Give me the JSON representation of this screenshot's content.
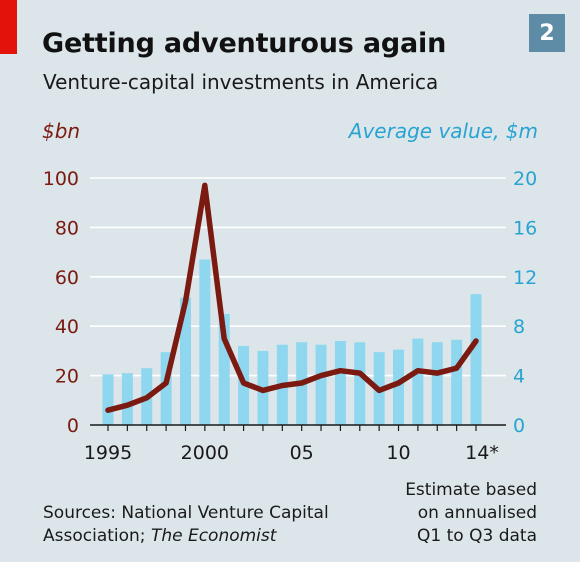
{
  "header": {
    "title": "Getting adventurous again",
    "subtitle": "Venture-capital investments in America",
    "badge": "2"
  },
  "footer": {
    "source_line1": "Sources: National Venture Capital",
    "source_line2_prefix": "Association; ",
    "source_line2_italic": "The Economist",
    "note_lines": [
      "Estimate based",
      "on annualised",
      "Q1 to Q3 data"
    ]
  },
  "colors": {
    "background": "#dce6ea",
    "bar": "#8fd6ef",
    "line": "#7a1a10",
    "left_axis_text": "#7a1a10",
    "right_axis_text": "#29a3d1",
    "brand_red": "#e3120b",
    "badge": "#5e8ca7"
  },
  "chart_data": {
    "type": "bar+line",
    "x_tick_labels": [
      "1995",
      "2000",
      "05",
      "10",
      "14*"
    ],
    "left_axis": {
      "label": "$bn",
      "range": [
        0,
        100
      ],
      "ticks": [
        "0",
        "20",
        "40",
        "60",
        "80",
        "100"
      ]
    },
    "right_axis": {
      "label": "Average value, $m",
      "range": [
        0,
        20
      ],
      "ticks": [
        "0",
        "4",
        "8",
        "12",
        "16",
        "20"
      ]
    },
    "grid": true,
    "x": [
      1995,
      1996,
      1997,
      1998,
      1999,
      2000,
      2001,
      2002,
      2003,
      2004,
      2005,
      2006,
      2007,
      2008,
      2009,
      2010,
      2011,
      2012,
      2013,
      2014
    ],
    "series": [
      {
        "type": "bar",
        "axis": "right",
        "values": [
          4.1,
          4.2,
          4.6,
          5.9,
          10.3,
          13.4,
          9.0,
          6.4,
          6.0,
          6.5,
          6.7,
          6.5,
          6.8,
          6.7,
          5.9,
          6.1,
          7.0,
          6.7,
          6.9,
          10.6
        ]
      },
      {
        "type": "line",
        "axis": "left",
        "values": [
          6,
          8,
          11,
          17,
          50,
          97,
          35,
          17,
          14,
          16,
          17,
          20,
          22,
          21,
          14,
          17,
          22,
          21,
          23,
          34
        ]
      }
    ]
  }
}
